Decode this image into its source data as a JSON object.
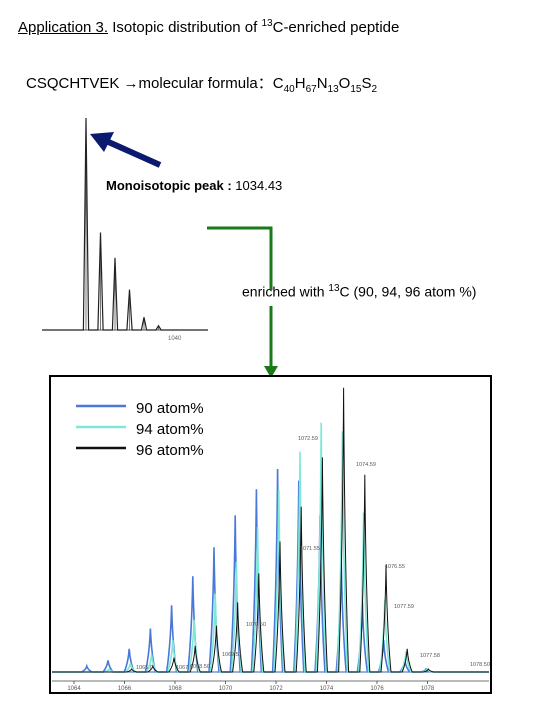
{
  "title": {
    "prefix": "Application 3.",
    "text_before_sup": " Isotopic distribution of ",
    "sup": "13",
    "text_after_sup": "C-enriched peptide"
  },
  "formula": {
    "peptide": "CSQCHTVEK",
    "arrow": "→",
    "label": "molecular formula：",
    "parts": [
      {
        "el": "C",
        "n": "40"
      },
      {
        "el": "H",
        "n": "67"
      },
      {
        "el": "N",
        "n": "13"
      },
      {
        "el": "O",
        "n": "15"
      },
      {
        "el": "S",
        "n": "2"
      }
    ]
  },
  "mono": {
    "label": "Monoisotopic peak :",
    "value": " 1034.43"
  },
  "enriched": {
    "before": "enriched with ",
    "sup": "13",
    "after": "C (90, 94, 96 atom %)"
  },
  "colors": {
    "arrow_navy": "#0a1a6e",
    "connector_green": "#1a7a1a",
    "s90": "#4a78d8",
    "s94": "#7ee8d8",
    "s96": "#111111",
    "peak_blue": "#1a1ab4"
  },
  "chart_data": [
    {
      "type": "line",
      "title": "",
      "xlabel": "",
      "ylabel": "",
      "x_ticks": [
        "1040"
      ],
      "series": [
        {
          "values": [
            1.0,
            0.46,
            0.34,
            0.19,
            0.06,
            0.02
          ]
        }
      ]
    },
    {
      "type": "line",
      "title": "",
      "xlabel": "",
      "ylabel": "",
      "x_ticks": [
        "1064",
        "1066",
        "1068",
        "1070",
        "1072",
        "1074",
        "1076",
        "1078"
      ],
      "series": [
        {
          "name": "90 atom%",
          "values": [
            0.02,
            0.04,
            0.08,
            0.15,
            0.23,
            0.33,
            0.43,
            0.54,
            0.63,
            0.7,
            0.66,
            0.54,
            0.4,
            0.24,
            0.11,
            0.04,
            0.01
          ]
        },
        {
          "name": "94 atom%",
          "values": [
            0.0,
            0.01,
            0.03,
            0.06,
            0.11,
            0.18,
            0.27,
            0.38,
            0.5,
            0.63,
            0.76,
            0.86,
            0.83,
            0.55,
            0.25,
            0.07,
            0.01
          ]
        },
        {
          "name": "96 atom%",
          "values": [
            0.0,
            0.0,
            0.01,
            0.02,
            0.05,
            0.09,
            0.16,
            0.24,
            0.34,
            0.45,
            0.57,
            0.74,
            0.98,
            0.68,
            0.37,
            0.08,
            0.01
          ]
        }
      ],
      "peak_labels": [
        "1072.59",
        "1074.59",
        "1071.55",
        "1070.50",
        "1069.51",
        "1076.55",
        "1077.59",
        "1068.50",
        "1065.0",
        "1067.5",
        "1077.58",
        "1078.50"
      ],
      "legend_position": "top-left"
    }
  ]
}
